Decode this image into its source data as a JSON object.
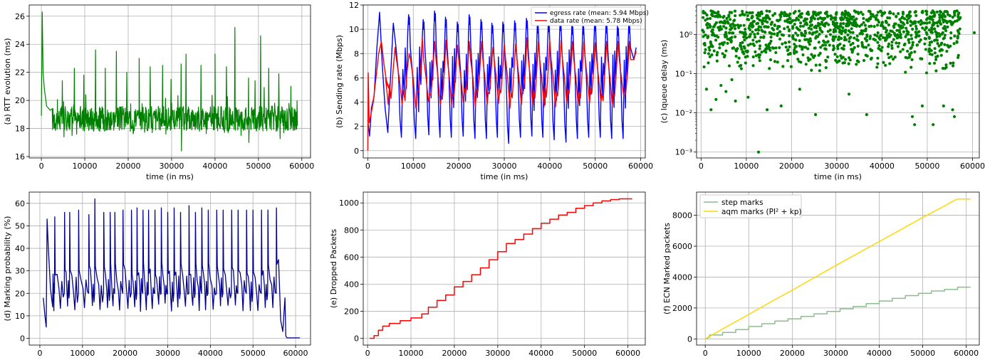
{
  "figure": {
    "panel_count": 6
  },
  "chart_data": [
    {
      "id": "a",
      "type": "line",
      "xlabel": "time (in ms)",
      "ylabel": "(a) RTT evolution (ms)",
      "xlim": [
        -2800,
        62000
      ],
      "ylim": [
        15.9,
        26.8
      ],
      "xticks": [
        0,
        10000,
        20000,
        30000,
        40000,
        50000,
        60000
      ],
      "yticks": [
        16,
        18,
        20,
        22,
        24,
        26
      ],
      "grid": true,
      "legend": null,
      "series": [
        {
          "color": "#008000",
          "x": [
            0,
            200,
            400,
            700,
            1200,
            2000,
            3000,
            5000,
            8000,
            10000,
            12000,
            15000,
            17500,
            20000,
            22500,
            25000,
            27500,
            30000,
            32000,
            33500,
            35000,
            37500,
            40000,
            42500,
            44500,
            45500,
            47500,
            50000,
            52000,
            54000,
            56000,
            58000,
            59000
          ],
          "y": [
            18.9,
            26.3,
            22.0,
            20.8,
            19.6,
            19.3,
            19.0,
            19.0,
            18.9,
            19.0,
            18.7,
            18.8,
            18.8,
            18.6,
            18.7,
            18.9,
            18.7,
            18.9,
            18.6,
            18.8,
            18.7,
            18.6,
            18.7,
            18.6,
            18.8,
            19.0,
            18.8,
            18.7,
            18.8,
            18.5,
            18.6,
            18.8,
            18.6
          ],
          "spike_times": [
            2000,
            4800,
            7600,
            9800,
            12500,
            14700,
            17300,
            19700,
            22500,
            25100,
            27900,
            29900,
            32200,
            33300,
            36800,
            40000,
            42600,
            44600,
            47700,
            49200,
            50500,
            52400,
            54700,
            57500
          ],
          "spike_values": [
            23.0,
            21.4,
            22.3,
            21.8,
            23.6,
            22.3,
            23.5,
            22.0,
            23.0,
            22.4,
            22.5,
            21.5,
            22.6,
            23.3,
            22.5,
            23.3,
            22.4,
            25.2,
            21.6,
            21.4,
            24.6,
            22.3,
            21.9,
            21.0
          ],
          "dip_times": [
            1500,
            5200,
            8100,
            12000,
            15300,
            20500,
            25500,
            28700,
            32300,
            36400,
            39600,
            43000,
            46000,
            47800,
            50200,
            53000,
            55800,
            58500
          ],
          "dip_values": [
            18.0,
            17.4,
            17.6,
            17.8,
            17.9,
            17.8,
            17.7,
            17.6,
            16.4,
            17.8,
            17.9,
            17.7,
            17.5,
            17.0,
            17.9,
            17.9,
            17.7,
            18.2
          ]
        }
      ]
    },
    {
      "id": "b",
      "type": "line",
      "xlabel": "time (in ms)",
      "ylabel": "(b) Sending rate (Mbps)",
      "xlim": [
        -1000,
        61000
      ],
      "ylim": [
        -0.6,
        12.0
      ],
      "xticks": [
        0,
        10000,
        20000,
        30000,
        40000,
        50000,
        60000
      ],
      "yticks": [
        0,
        2,
        4,
        6,
        8,
        10,
        12
      ],
      "grid": true,
      "legend": "top-right",
      "series": [
        {
          "name": "egress rate (mean: 5.94 Mbps)",
          "color": "#0000ff",
          "x": [
            0,
            400,
            800,
            1400,
            2000,
            2600,
            3200,
            3800,
            4400,
            5000,
            5600,
            6200,
            58500,
            59000
          ],
          "y": [
            2.5,
            1.2,
            3.5,
            4.5,
            8.5,
            11.4,
            7.0,
            3.5,
            1.5,
            6.0,
            10.5,
            8.5,
            7.5,
            8.5
          ],
          "peak_times": [
            2700,
            6000,
            9100,
            12300,
            14800,
            17200,
            19800,
            22400,
            25000,
            27400,
            29800,
            32400,
            35000,
            37400,
            39800,
            42400,
            45000,
            47400,
            50000,
            52500,
            55000,
            57500
          ],
          "peak_values": [
            11.4,
            11.0,
            11.2,
            10.8,
            11.5,
            11.0,
            10.6,
            11.2,
            10.8,
            10.5,
            10.6,
            10.7,
            10.9,
            10.5,
            10.6,
            10.7,
            10.4,
            10.4,
            10.7,
            10.5,
            10.3,
            10.5
          ],
          "trough_values": [
            1.1,
            1.2,
            1.1,
            1.0,
            1.3,
            1.1,
            1.1,
            1.2,
            1.0,
            1.0,
            1.1,
            0.6,
            1.1,
            1.2,
            1.1,
            0.9,
            0.7,
            1.0,
            1.1,
            1.1,
            1.0,
            1.0
          ]
        },
        {
          "name": "data rate (mean: 5.78 Mbps)",
          "color": "#ff0000",
          "x": [
            0,
            100,
            300,
            700,
            1200,
            1800,
            2400,
            3000,
            3600,
            4200,
            4800,
            58500,
            59000
          ],
          "y": [
            0.0,
            6.4,
            2.3,
            3.0,
            4.0,
            6.0,
            8.0,
            9.0,
            7.0,
            5.5,
            5.0,
            7.5,
            8.2
          ],
          "peak_times": [
            3000,
            6000,
            9100,
            12000,
            14700,
            17200,
            19700,
            22300,
            25000,
            27500,
            30000,
            32500,
            35000,
            37500,
            40000,
            42500,
            45000,
            47500,
            50000,
            52500,
            55000,
            57500
          ],
          "peak_values": [
            9.0,
            8.5,
            8.0,
            9.3,
            9.0,
            9.1,
            8.7,
            9.0,
            9.0,
            8.5,
            8.8,
            8.8,
            9.3,
            9.0,
            9.1,
            9.1,
            9.0,
            9.0,
            8.9,
            9.0,
            9.0,
            9.0
          ],
          "trough_values": [
            3.8,
            3.8,
            3.8,
            3.5,
            4.0,
            3.8,
            3.7,
            4.0,
            3.6,
            3.8,
            3.9,
            3.5,
            3.8,
            3.8,
            3.6,
            3.6,
            3.9,
            3.8,
            3.9,
            4.0,
            3.7,
            4.5
          ]
        }
      ]
    },
    {
      "id": "c",
      "type": "scatter",
      "xlabel": "time (in ms)",
      "ylabel": "(c) lqueue delay (ms)",
      "xlim": [
        -1000,
        61500
      ],
      "ylim_log10": [
        -3.15,
        0.75
      ],
      "xticks": [
        0,
        10000,
        20000,
        30000,
        40000,
        50000,
        60000
      ],
      "yticks": [
        "10⁻³",
        "10⁻²",
        "10⁻¹",
        "10⁰"
      ],
      "yscale": "log",
      "grid": true,
      "legend": null,
      "series": [
        {
          "color": "#008000",
          "x_range": [
            300,
            57300
          ],
          "y_range_log10": [
            -1.0,
            0.6
          ],
          "point_count": 1100,
          "outlier_x": [
            1200,
            2200,
            3300,
            4400,
            5500,
            6800,
            7600,
            10400,
            12700,
            14600,
            17700,
            21800,
            25300,
            32700,
            36600,
            46700,
            47200,
            48900,
            51300,
            53600,
            55600,
            56000,
            60400
          ],
          "outlier_y": [
            0.04,
            0.012,
            0.022,
            0.05,
            0.035,
            0.07,
            0.02,
            0.025,
            0.001,
            0.012,
            0.015,
            0.04,
            0.009,
            0.03,
            0.009,
            0.008,
            0.005,
            0.015,
            0.005,
            0.015,
            0.012,
            0.008,
            1.1
          ]
        }
      ]
    },
    {
      "id": "d",
      "type": "line",
      "xlabel": "",
      "ylabel": "(d) Marking probability (%)",
      "xlim": [
        -2500,
        63500
      ],
      "ylim": [
        -3,
        65
      ],
      "xticks": [
        0,
        10000,
        20000,
        30000,
        40000,
        50000,
        60000
      ],
      "yticks": [
        0,
        10,
        20,
        30,
        40,
        50,
        60
      ],
      "grid": true,
      "legend": null,
      "series": [
        {
          "color": "#00008b",
          "x": [
            800,
            1200,
            1500,
            1700,
            2000,
            2500,
            3000,
            56000,
            56500,
            57000,
            57500,
            57700,
            58000,
            60000,
            61000
          ],
          "y": [
            18,
            10,
            5,
            53,
            40,
            22,
            14,
            35,
            8,
            3,
            18,
            1,
            0.2,
            0.2,
            0.2
          ],
          "peak_times": [
            1800,
            2500,
            3500,
            5800,
            7000,
            9100,
            11500,
            12900,
            15000,
            16500,
            17600,
            19500,
            21500,
            22800,
            24200,
            25500,
            27000,
            28500,
            30000,
            31500,
            33000,
            35000,
            36500,
            38000,
            39500,
            41500,
            43000,
            45000,
            46500,
            48500,
            50000,
            52000,
            53500,
            55500
          ],
          "peak_values": [
            53,
            54,
            54,
            56,
            56,
            57,
            55,
            62,
            56,
            56,
            56,
            57,
            57,
            58,
            57,
            57,
            57,
            58,
            56,
            58,
            56,
            59,
            56,
            58,
            57,
            57,
            57,
            57,
            57,
            57,
            57,
            57,
            57,
            58
          ],
          "base_range": [
            10,
            30
          ]
        }
      ]
    },
    {
      "id": "e",
      "type": "line",
      "xlabel": "",
      "ylabel": "(e) Dropped Packets",
      "xlim": [
        -1000,
        64000
      ],
      "ylim": [
        -50,
        1080
      ],
      "xticks": [
        0,
        10000,
        20000,
        30000,
        40000,
        50000,
        60000
      ],
      "yticks": [
        0,
        200,
        400,
        600,
        800,
        1000
      ],
      "grid": true,
      "legend": null,
      "series": [
        {
          "color": "#ff0000",
          "step": true,
          "x": [
            500,
            1500,
            2500,
            3500,
            5000,
            7500,
            10000,
            12500,
            14000,
            16000,
            18000,
            20000,
            22000,
            24000,
            26000,
            28000,
            30000,
            32000,
            34000,
            36000,
            38000,
            40000,
            42000,
            44000,
            46000,
            48000,
            50000,
            52000,
            54000,
            56000,
            58000,
            61000
          ],
          "y": [
            0,
            20,
            60,
            90,
            110,
            130,
            150,
            180,
            230,
            280,
            320,
            380,
            420,
            470,
            520,
            580,
            640,
            700,
            730,
            770,
            810,
            850,
            880,
            910,
            930,
            960,
            980,
            1000,
            1015,
            1025,
            1030,
            1030
          ]
        }
      ]
    },
    {
      "id": "f",
      "type": "line",
      "xlabel": "",
      "ylabel": "(f) ECN Marked packets",
      "xlim": [
        -2000,
        63000
      ],
      "ylim": [
        -400,
        9500
      ],
      "xticks": [
        0,
        10000,
        20000,
        30000,
        40000,
        50000,
        60000
      ],
      "yticks": [
        0,
        2000,
        4000,
        6000,
        8000
      ],
      "grid": true,
      "legend": "top-left",
      "series": [
        {
          "name": "step marks",
          "color": "#8fbc8f",
          "step": true,
          "x": [
            0,
            500,
            1000,
            4000,
            7000,
            10000,
            13000,
            16000,
            19000,
            22000,
            25000,
            28000,
            31000,
            34000,
            37000,
            40000,
            43000,
            46000,
            49000,
            52000,
            55000,
            58000,
            61000
          ],
          "y": [
            0,
            100,
            250,
            420,
            600,
            800,
            980,
            1150,
            1300,
            1450,
            1620,
            1780,
            1950,
            2100,
            2280,
            2450,
            2620,
            2800,
            2950,
            3100,
            3200,
            3350,
            3350
          ]
        },
        {
          "name": "aqm marks (PI² + kp)",
          "color": "#ffd700",
          "x": [
            0,
            5000,
            10000,
            15000,
            20000,
            25000,
            30000,
            35000,
            40000,
            45000,
            50000,
            55000,
            57500,
            58000,
            61000
          ],
          "y": [
            0,
            800,
            1580,
            2380,
            3150,
            3950,
            4750,
            5520,
            6300,
            7080,
            7860,
            8600,
            9000,
            9050,
            9050
          ]
        }
      ]
    }
  ]
}
